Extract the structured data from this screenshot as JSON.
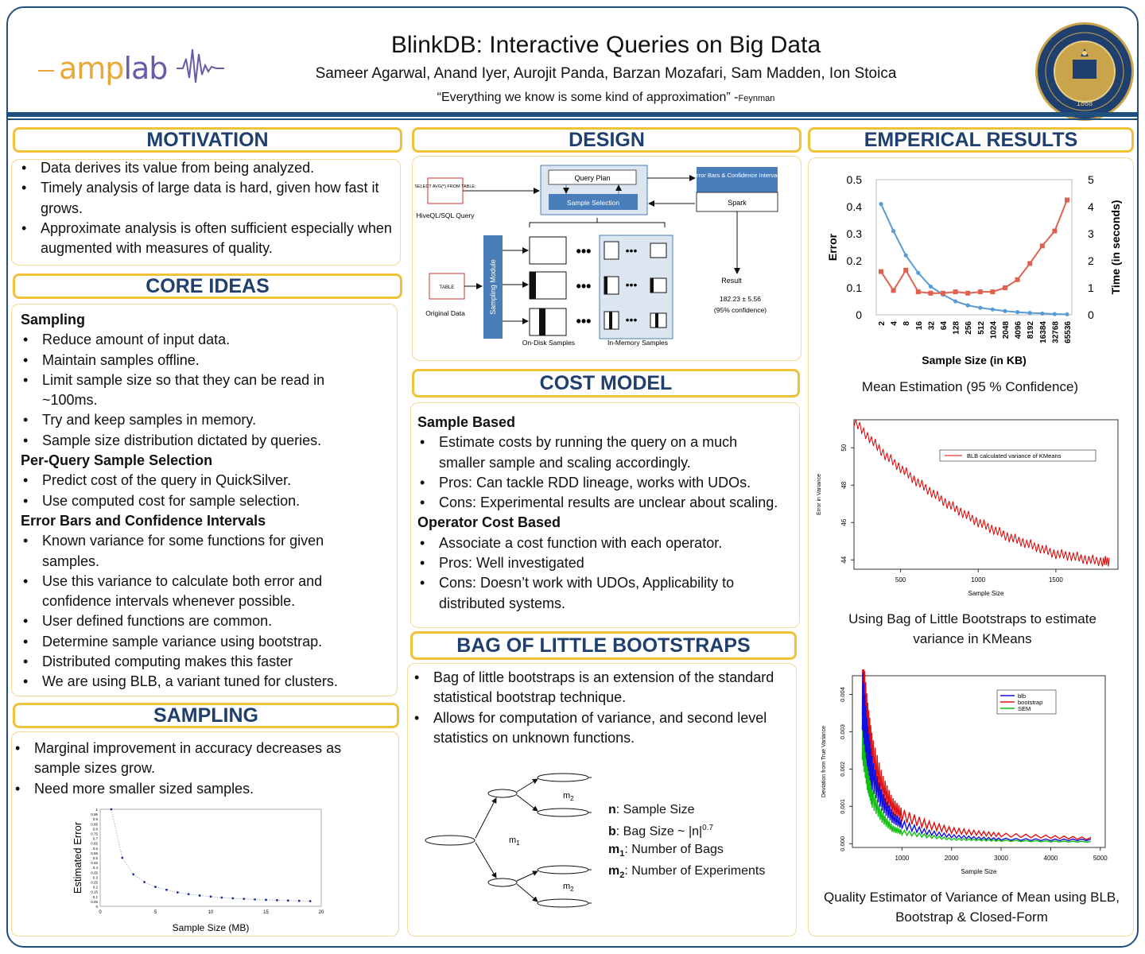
{
  "header": {
    "logo_amp": "amp",
    "logo_lab": "lab",
    "title": "BlinkDB: Interactive Queries on Big Data",
    "authors": "Sameer Agarwal, Anand Iyer, Aurojit Panda, Barzan Mozafari, Sam Madden, Ion Stoica",
    "quote": "“Everything we know is some kind of approximation” -",
    "quote_author": "Feynman",
    "seal_year": "1868",
    "seal_text": "THE UNIVERSITY OF CALIFORNIA BERKELEY"
  },
  "motivation": {
    "heading": "MOTIVATION",
    "bullets": [
      "Data derives its value from being analyzed.",
      "Timely analysis of large data is hard, given how fast it grows.",
      "Approximate analysis is often sufficient especially when augmented with measures of quality."
    ]
  },
  "core_ideas": {
    "heading": "CORE IDEAS",
    "sampling_title": "Sampling",
    "sampling": [
      "Reduce amount of input data.",
      "Maintain samples offline.",
      "Limit sample size so that they can be read in ~100ms.",
      "Try and keep samples in memory.",
      "Sample size distribution dictated by queries."
    ],
    "perquery_title": "Per-Query Sample Selection",
    "perquery": [
      "Predict cost of the query in QuickSilver.",
      "Use computed cost for sample selection."
    ],
    "errorbars_title": "Error Bars and Confidence Intervals",
    "errorbars": [
      "Known variance for some functions for given samples.",
      "Use this variance to calculate both error and confidence intervals whenever possible.",
      "User defined functions are common.",
      "Determine sample variance using bootstrap.",
      "Distributed computing makes this faster",
      "We are using BLB, a variant tuned for clusters."
    ]
  },
  "sampling": {
    "heading": "SAMPLING",
    "bullets": [
      "Marginal improvement in accuracy decreases as sample sizes grow.",
      "Need more smaller sized samples."
    ]
  },
  "design": {
    "heading": "DESIGN",
    "query_box": "SELECT AVG(*) FROM TABLE;",
    "query_label": "HiveQL/SQL Query",
    "query_plan": "Query Plan",
    "sample_selection": "Sample Selection",
    "error_bars": "Error Bars & Confidence Intervals",
    "spark": "Spark",
    "table": "TABLE",
    "original_data": "Original Data",
    "sampling_module": "Sampling Module",
    "result_label": "Result",
    "result_value": "182.23 ± 5.56",
    "result_conf": "(95% confidence)",
    "ondisk": "On-Disk Samples",
    "inmemory": "In-Memory Samples"
  },
  "cost_model": {
    "heading": "COST MODEL",
    "sample_title": "Sample Based",
    "sample": [
      "Estimate costs by running the query on a much smaller sample and scaling accordingly.",
      "Pros: Can tackle RDD lineage, works with UDOs.",
      "Cons: Experimental results are unclear about scaling."
    ],
    "operator_title": "Operator Cost Based",
    "operator": [
      "Associate a cost function with each operator.",
      "Pros: Well investigated",
      "Cons: Doesn’t work with UDOs, Applicability to distributed systems."
    ]
  },
  "blb": {
    "heading": "BAG OF LITTLE BOOTSTRAPS",
    "bullets": [
      "Bag of little bootstraps is an extension of the standard statistical bootstrap technique.",
      "Allows for computation of variance, and second level statistics on unknown functions."
    ],
    "legend_n_key": "n",
    "legend_n": ": Sample Size",
    "legend_b_key": "b",
    "legend_b": ": Bag Size ~ |n|",
    "legend_b_exp": "0.7",
    "legend_m1_key": "m",
    "legend_m1_sub": "1",
    "legend_m1": ": Number of Bags",
    "legend_m2_key": "m",
    "legend_m2_sub": "2",
    "legend_m2": ": Number of Experiments",
    "diagram_m1": "m",
    "diagram_m1_sub": "1",
    "diagram_m2": "m",
    "diagram_m2_sub": "2"
  },
  "results": {
    "heading": "EMPERICAL RESULTS",
    "cap1": "Mean Estimation (95 % Confidence)",
    "cap2": "Using Bag of Little Bootstraps to estimate variance in KMeans",
    "cap3": "Quality Estimator of Variance of Mean using BLB, Bootstrap & Closed-Form"
  },
  "chart_data": [
    {
      "id": "mean-estimation",
      "type": "line",
      "categories": [
        "2",
        "4",
        "8",
        "16",
        "32",
        "64",
        "128",
        "256",
        "512",
        "1024",
        "2048",
        "4096",
        "8192",
        "16384",
        "32768",
        "65536"
      ],
      "xlabel": "Sample Size (in KB)",
      "ylabel": "Error",
      "y2label": "Time (in seconds)",
      "ylim": [
        0,
        0.5
      ],
      "yticks": [
        "0",
        "0.1",
        "0.2",
        "0.3",
        "0.4",
        "0.5"
      ],
      "y2lim": [
        0,
        5
      ],
      "y2ticks": [
        "0",
        "1",
        "2",
        "3",
        "4",
        "5"
      ],
      "series": [
        {
          "axis": "left",
          "color": "#5b9bd5",
          "values": [
            0.41,
            0.31,
            0.22,
            0.155,
            0.105,
            0.075,
            0.05,
            0.035,
            0.026,
            0.02,
            0.014,
            0.01,
            0.007,
            0.005,
            0.003,
            0.002
          ]
        },
        {
          "axis": "right",
          "color": "#e0604f",
          "values": [
            1.6,
            0.9,
            1.65,
            0.85,
            0.8,
            0.8,
            0.85,
            0.8,
            0.85,
            0.85,
            1.0,
            1.3,
            1.9,
            2.55,
            3.1,
            4.25
          ]
        }
      ]
    },
    {
      "id": "kmeans-variance",
      "type": "line",
      "xlabel": "Sample Size",
      "ylabel": "Error in Variance",
      "xlim": [
        200,
        1900
      ],
      "xticks": [
        500,
        1000,
        1500
      ],
      "ylim": [
        43.5,
        51.5
      ],
      "yticks": [
        44,
        46,
        48,
        50
      ],
      "legend": "BLB calculated variance of KMeans",
      "series": [
        {
          "name": "BLB calculated variance of KMeans",
          "color": "#e00000",
          "x": [
            200,
            300,
            400,
            500,
            600,
            700,
            800,
            900,
            1000,
            1100,
            1200,
            1300,
            1400,
            1500,
            1600,
            1700,
            1800,
            1850
          ],
          "y": [
            51.4,
            50.5,
            49.6,
            48.9,
            48.2,
            47.6,
            47.0,
            46.5,
            46.0,
            45.6,
            45.2,
            44.9,
            44.6,
            44.3,
            44.2,
            44.0,
            43.9,
            43.9
          ]
        }
      ]
    },
    {
      "id": "variance-quality",
      "type": "line",
      "xlabel": "Sample Size",
      "ylabel": "Deviation from True Variance",
      "xlim": [
        0,
        5100
      ],
      "xticks": [
        1000,
        2000,
        3000,
        4000,
        5000
      ],
      "ylim": [
        -0.0001,
        0.0045
      ],
      "yticks": [
        "0.000",
        "0.001",
        "0.002",
        "0.003",
        "0.004"
      ],
      "series": [
        {
          "name": "blb",
          "color": "#1010e0",
          "x": [
            200,
            300,
            400,
            600,
            800,
            1000,
            1500,
            2000,
            2500,
            3000,
            4000,
            4900
          ],
          "y": [
            0.0038,
            0.0026,
            0.0018,
            0.0011,
            0.0007,
            0.0005,
            0.0003,
            0.0002,
            0.00015,
            0.00012,
            0.0001,
            0.0001
          ]
        },
        {
          "name": "bootstrap",
          "color": "#e01010",
          "x": [
            200,
            300,
            400,
            600,
            800,
            1000,
            1500,
            2000,
            2500,
            3000,
            4000,
            4900
          ],
          "y": [
            0.0043,
            0.0031,
            0.0023,
            0.0015,
            0.001,
            0.00075,
            0.0005,
            0.00035,
            0.00028,
            0.00023,
            0.00018,
            0.00013
          ]
        },
        {
          "name": "SEM",
          "color": "#10c010",
          "x": [
            200,
            300,
            400,
            600,
            800,
            1000,
            1500,
            2000,
            2500,
            3000,
            4000,
            4900
          ],
          "y": [
            0.0028,
            0.0018,
            0.0012,
            0.0007,
            0.0004,
            0.0003,
            0.0002,
            0.00012,
            0.0001,
            8e-05,
            6e-05,
            5e-05
          ]
        }
      ]
    },
    {
      "id": "sampling-error",
      "type": "scatter",
      "xlabel": "Sample Size (MB)",
      "ylabel": "Estimated Error",
      "xlim": [
        0,
        20
      ],
      "xticks": [
        0,
        5,
        10,
        15,
        20
      ],
      "ylim": [
        0,
        1
      ],
      "yticks": [
        "0",
        "0.05",
        "0.1",
        "0.15",
        "0.2",
        "0.25",
        "0.3",
        "0.35",
        "0.4",
        "0.45",
        "0.5",
        "0.55",
        "0.6",
        "0.65",
        "0.7",
        "0.75",
        "0.8",
        "0.85",
        "0.9",
        "0.95",
        "1"
      ],
      "x": [
        1,
        2,
        3,
        4,
        5,
        6,
        7,
        8,
        9,
        10,
        11,
        12,
        13,
        14,
        15,
        16,
        17,
        18,
        19
      ],
      "y": [
        1.0,
        0.5,
        0.33,
        0.25,
        0.2,
        0.17,
        0.143,
        0.125,
        0.111,
        0.1,
        0.09,
        0.083,
        0.077,
        0.071,
        0.067,
        0.063,
        0.059,
        0.056,
        0.053
      ]
    }
  ]
}
